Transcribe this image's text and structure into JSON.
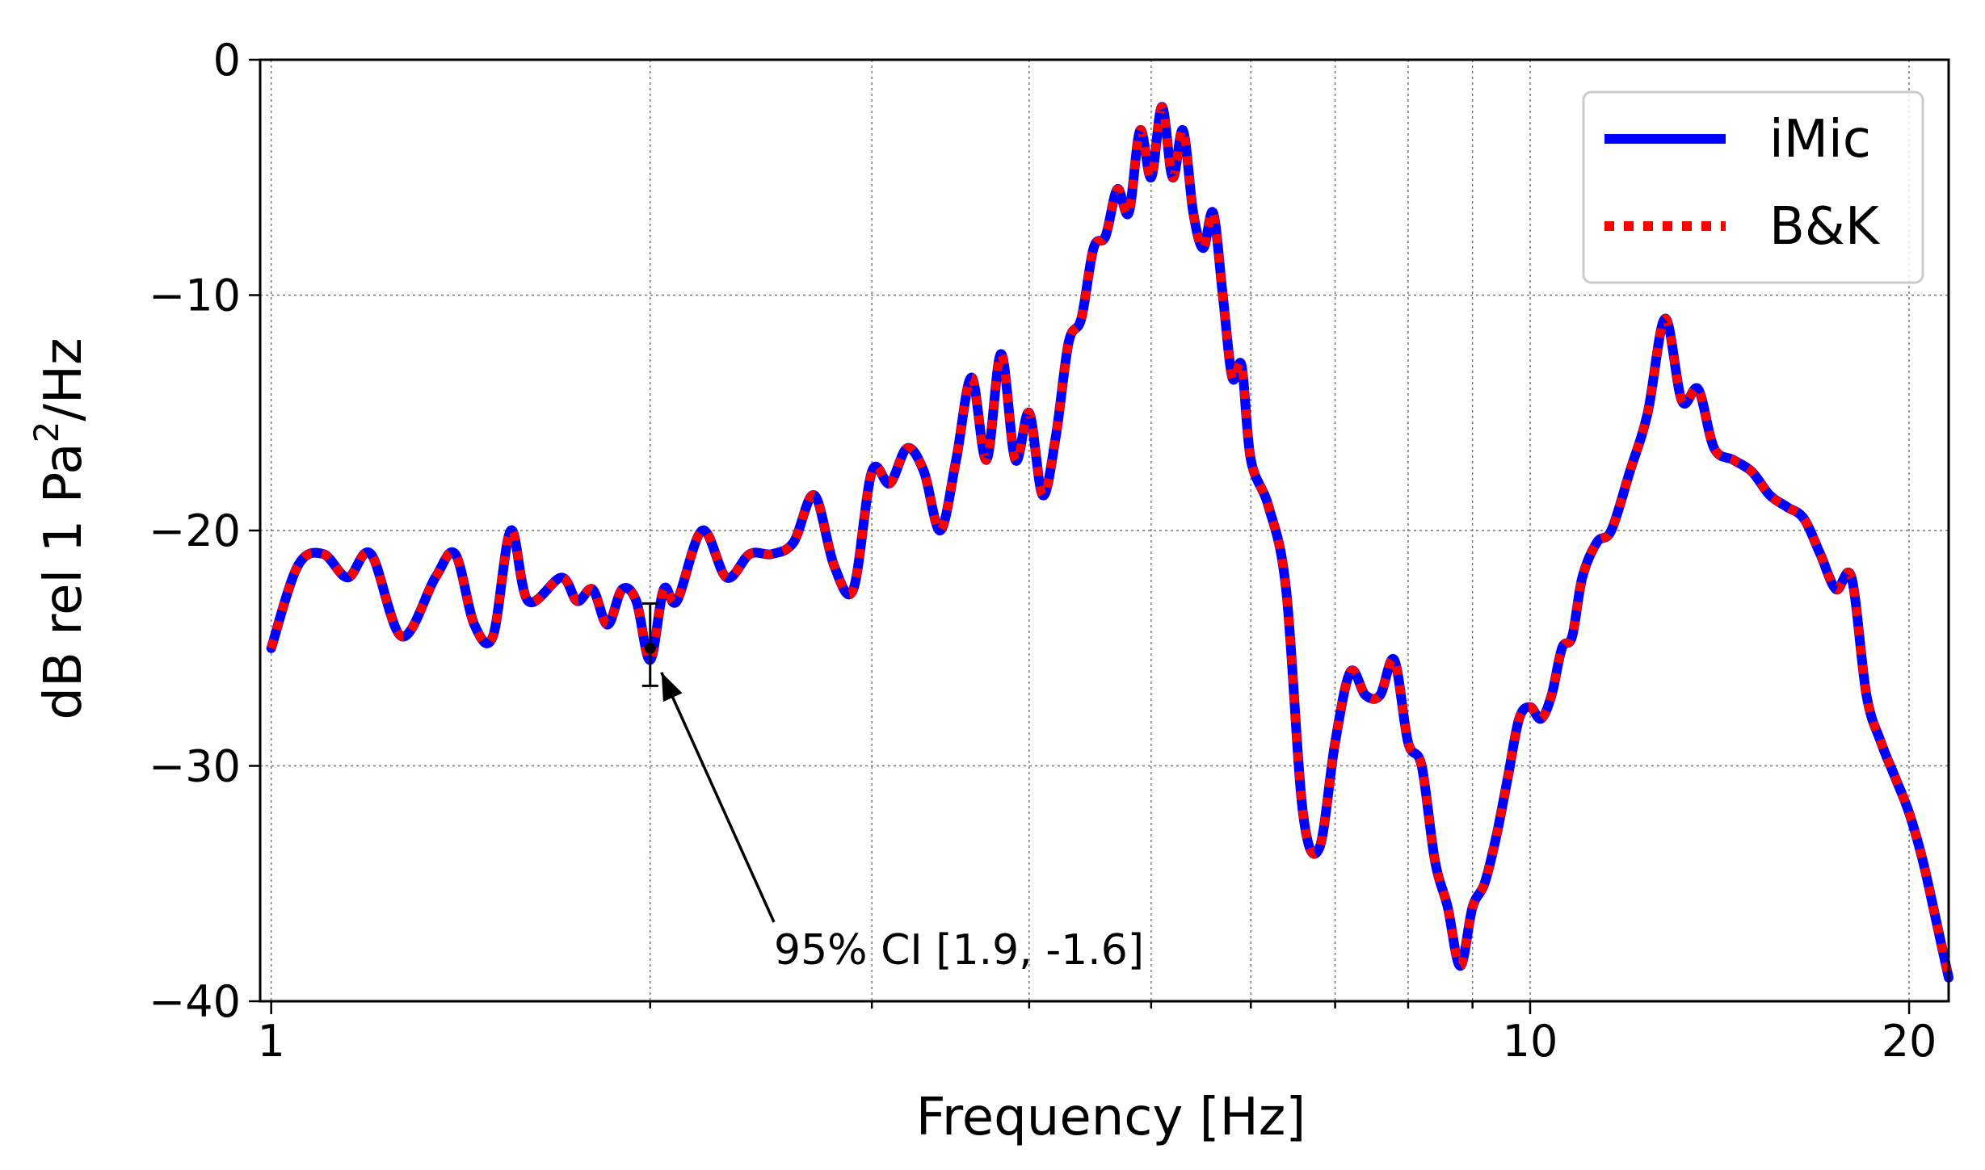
{
  "chart_data": {
    "type": "line",
    "title": "",
    "xlabel": "Frequency [Hz]",
    "ylabel_main": "dB rel 1 Pa",
    "ylabel_sup": "2",
    "ylabel_tail": "/Hz",
    "xscale": "log",
    "xlim": [
      0.98,
      21.5
    ],
    "ylim": [
      -40,
      0
    ],
    "x_ticks": [
      1,
      10,
      20
    ],
    "x_tick_labels": [
      "1",
      "10",
      "20"
    ],
    "y_ticks": [
      0,
      -10,
      -20,
      -30,
      -40
    ],
    "y_tick_labels": [
      "0",
      "−10",
      "−20",
      "−30",
      "−40"
    ],
    "grid": true,
    "legend_position": "top-right",
    "series": [
      {
        "name": "iMic",
        "color": "#0000ff",
        "style": "solid"
      },
      {
        "name": "B&K",
        "color": "#ff0000",
        "style": "dotted"
      }
    ],
    "x": [
      1.0,
      1.05,
      1.1,
      1.15,
      1.2,
      1.27,
      1.35,
      1.4,
      1.45,
      1.5,
      1.55,
      1.6,
      1.7,
      1.75,
      1.8,
      1.85,
      1.9,
      1.95,
      2.0,
      2.05,
      2.1,
      2.2,
      2.3,
      2.4,
      2.5,
      2.6,
      2.7,
      2.8,
      2.9,
      3.0,
      3.1,
      3.2,
      3.3,
      3.4,
      3.5,
      3.6,
      3.7,
      3.8,
      3.9,
      4.0,
      4.1,
      4.2,
      4.3,
      4.4,
      4.5,
      4.6,
      4.7,
      4.8,
      4.9,
      5.0,
      5.1,
      5.2,
      5.3,
      5.4,
      5.5,
      5.6,
      5.7,
      5.8,
      5.9,
      6.0,
      6.2,
      6.4,
      6.6,
      6.8,
      7.0,
      7.2,
      7.4,
      7.6,
      7.8,
      8.0,
      8.2,
      8.4,
      8.6,
      8.8,
      9.0,
      9.2,
      9.4,
      9.6,
      9.8,
      10.0,
      10.2,
      10.4,
      10.6,
      10.8,
      11.0,
      11.3,
      11.6,
      12.0,
      12.4,
      12.8,
      13.2,
      13.6,
      14.0,
      14.5,
      15.0,
      15.5,
      16.0,
      16.5,
      17.0,
      17.5,
      18.0,
      18.5,
      19.0,
      19.5,
      20.0,
      20.5,
      21.0,
      21.5
    ],
    "y": [
      -25,
      -21.5,
      -21,
      -22,
      -21,
      -24.5,
      -22,
      -21,
      -24,
      -24.5,
      -20,
      -23,
      -22,
      -23,
      -22.5,
      -24,
      -22.5,
      -23,
      -25.5,
      -22.5,
      -23,
      -20,
      -22,
      -21,
      -21,
      -20.5,
      -18.5,
      -21.5,
      -22.5,
      -17.5,
      -18,
      -16.5,
      -17.5,
      -20,
      -17,
      -13.5,
      -17,
      -12.5,
      -17,
      -15,
      -18.5,
      -16,
      -12,
      -11,
      -8,
      -7.5,
      -5.5,
      -6.5,
      -3,
      -5,
      -2,
      -5,
      -3,
      -6.5,
      -8,
      -6.5,
      -10,
      -13.5,
      -13,
      -17,
      -19,
      -22.5,
      -32,
      -33.5,
      -29,
      -26,
      -27,
      -27,
      -25.5,
      -29,
      -30,
      -34,
      -36,
      -38.5,
      -36,
      -35,
      -33,
      -30.5,
      -28,
      -27.5,
      -28,
      -27,
      -25,
      -24.5,
      -22,
      -20.5,
      -20,
      -17.5,
      -15,
      -11,
      -14.5,
      -14,
      -16.5,
      -17,
      -17.5,
      -18.5,
      -19,
      -19.5,
      -21,
      -22.5,
      -22,
      -27,
      -29,
      -30.5,
      -32,
      -34,
      -36.5,
      -39
    ]
  },
  "legend": {
    "entries": [
      "iMic",
      "B&K"
    ]
  },
  "annotation": {
    "text": "95% CI [1.9, -1.6]",
    "x": 2.0,
    "y": -25,
    "ci_upper": 1.9,
    "ci_lower": -1.6
  }
}
